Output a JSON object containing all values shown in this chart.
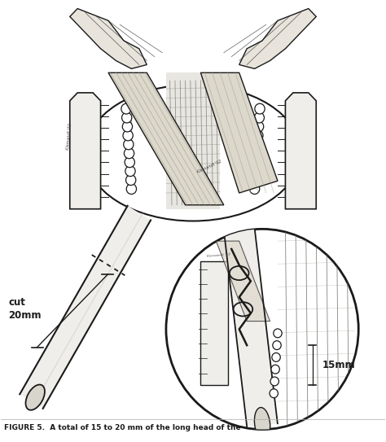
{
  "background_color": "#ffffff",
  "fig_width": 4.74,
  "fig_height": 5.43,
  "dpi": 100,
  "label_cut": "cut\n20mm",
  "label_15mm": "15mm",
  "caption_full": "FIGURE 5.  A total of 15 to 20 mm of the long head of the",
  "color_line": "#1a1a1a",
  "color_fill_light": "#f0eeea",
  "color_fill_gray": "#d0d0d0"
}
